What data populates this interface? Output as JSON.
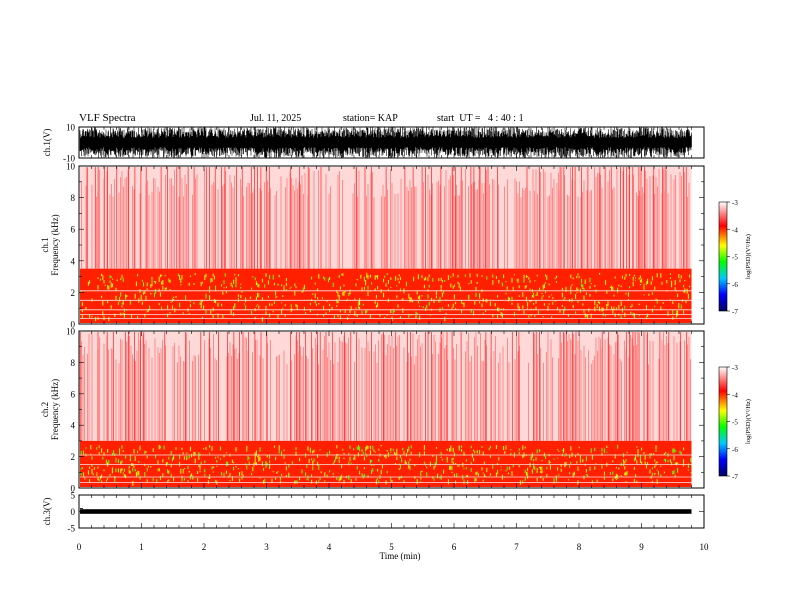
{
  "header": {
    "title": "VLF Spectra",
    "date": "Jul. 11, 2025",
    "station": "station= KAP",
    "start": "start  UT =   4 : 40 : 1"
  },
  "chart_data": [
    {
      "type": "line",
      "name": "ch1-waveform",
      "ylabel": "ch.1(V)",
      "ylim": [
        -10,
        10
      ],
      "yticks": [
        "10",
        "-10"
      ],
      "x_range_min": [
        0,
        9.8
      ],
      "amplitude_range_v": [
        -10,
        10
      ]
    },
    {
      "type": "heatmap",
      "name": "ch1-spectrogram",
      "ylabel": "ch.1\nFrequency (kHz)",
      "ylim": [
        0,
        10
      ],
      "yticks": [
        "0",
        "2",
        "4",
        "6",
        "8",
        "10"
      ],
      "x_range_min": [
        0,
        9.8
      ],
      "color_scale": {
        "label": "log(PSD)(V²/Hz)",
        "ticks": [
          "-3",
          "-4",
          "-5",
          "-6",
          "-7"
        ],
        "range": [
          -7,
          -3
        ],
        "colors": [
          "#000080",
          "#0000ff",
          "#00c0ff",
          "#00ff00",
          "#ffff00",
          "#ff0000",
          "#ffffff"
        ]
      },
      "bands_khz": {
        "intense_below": 3.5,
        "moderate_below": 10
      }
    },
    {
      "type": "heatmap",
      "name": "ch2-spectrogram",
      "ylabel": "ch.2\nFrequency (kHz)",
      "ylim": [
        0,
        10
      ],
      "yticks": [
        "0",
        "2",
        "4",
        "6",
        "8",
        "10"
      ],
      "x_range_min": [
        0,
        9.8
      ],
      "color_scale": {
        "label": "log(PSD)(V²/Hz)",
        "ticks": [
          "-3",
          "-4",
          "-5",
          "-6",
          "-7"
        ],
        "range": [
          -7,
          -3
        ]
      },
      "bands_khz": {
        "intense_below": 3.0,
        "moderate_below": 10
      }
    },
    {
      "type": "line",
      "name": "ch3-waveform",
      "ylabel": "ch.3(V)",
      "ylim": [
        -5,
        5
      ],
      "yticks": [
        "5",
        "0",
        "-5"
      ],
      "x_range_min": [
        0,
        9.8
      ],
      "amplitude_range_v": [
        -0.7,
        0.7
      ]
    }
  ],
  "xaxis": {
    "label": "Time (min)",
    "ticks": [
      "0",
      "1",
      "2",
      "3",
      "4",
      "5",
      "6",
      "7",
      "8",
      "9",
      "10"
    ],
    "xlim": [
      0,
      10
    ]
  },
  "colors": {
    "axis": "#000000",
    "background": "#ffffff"
  }
}
